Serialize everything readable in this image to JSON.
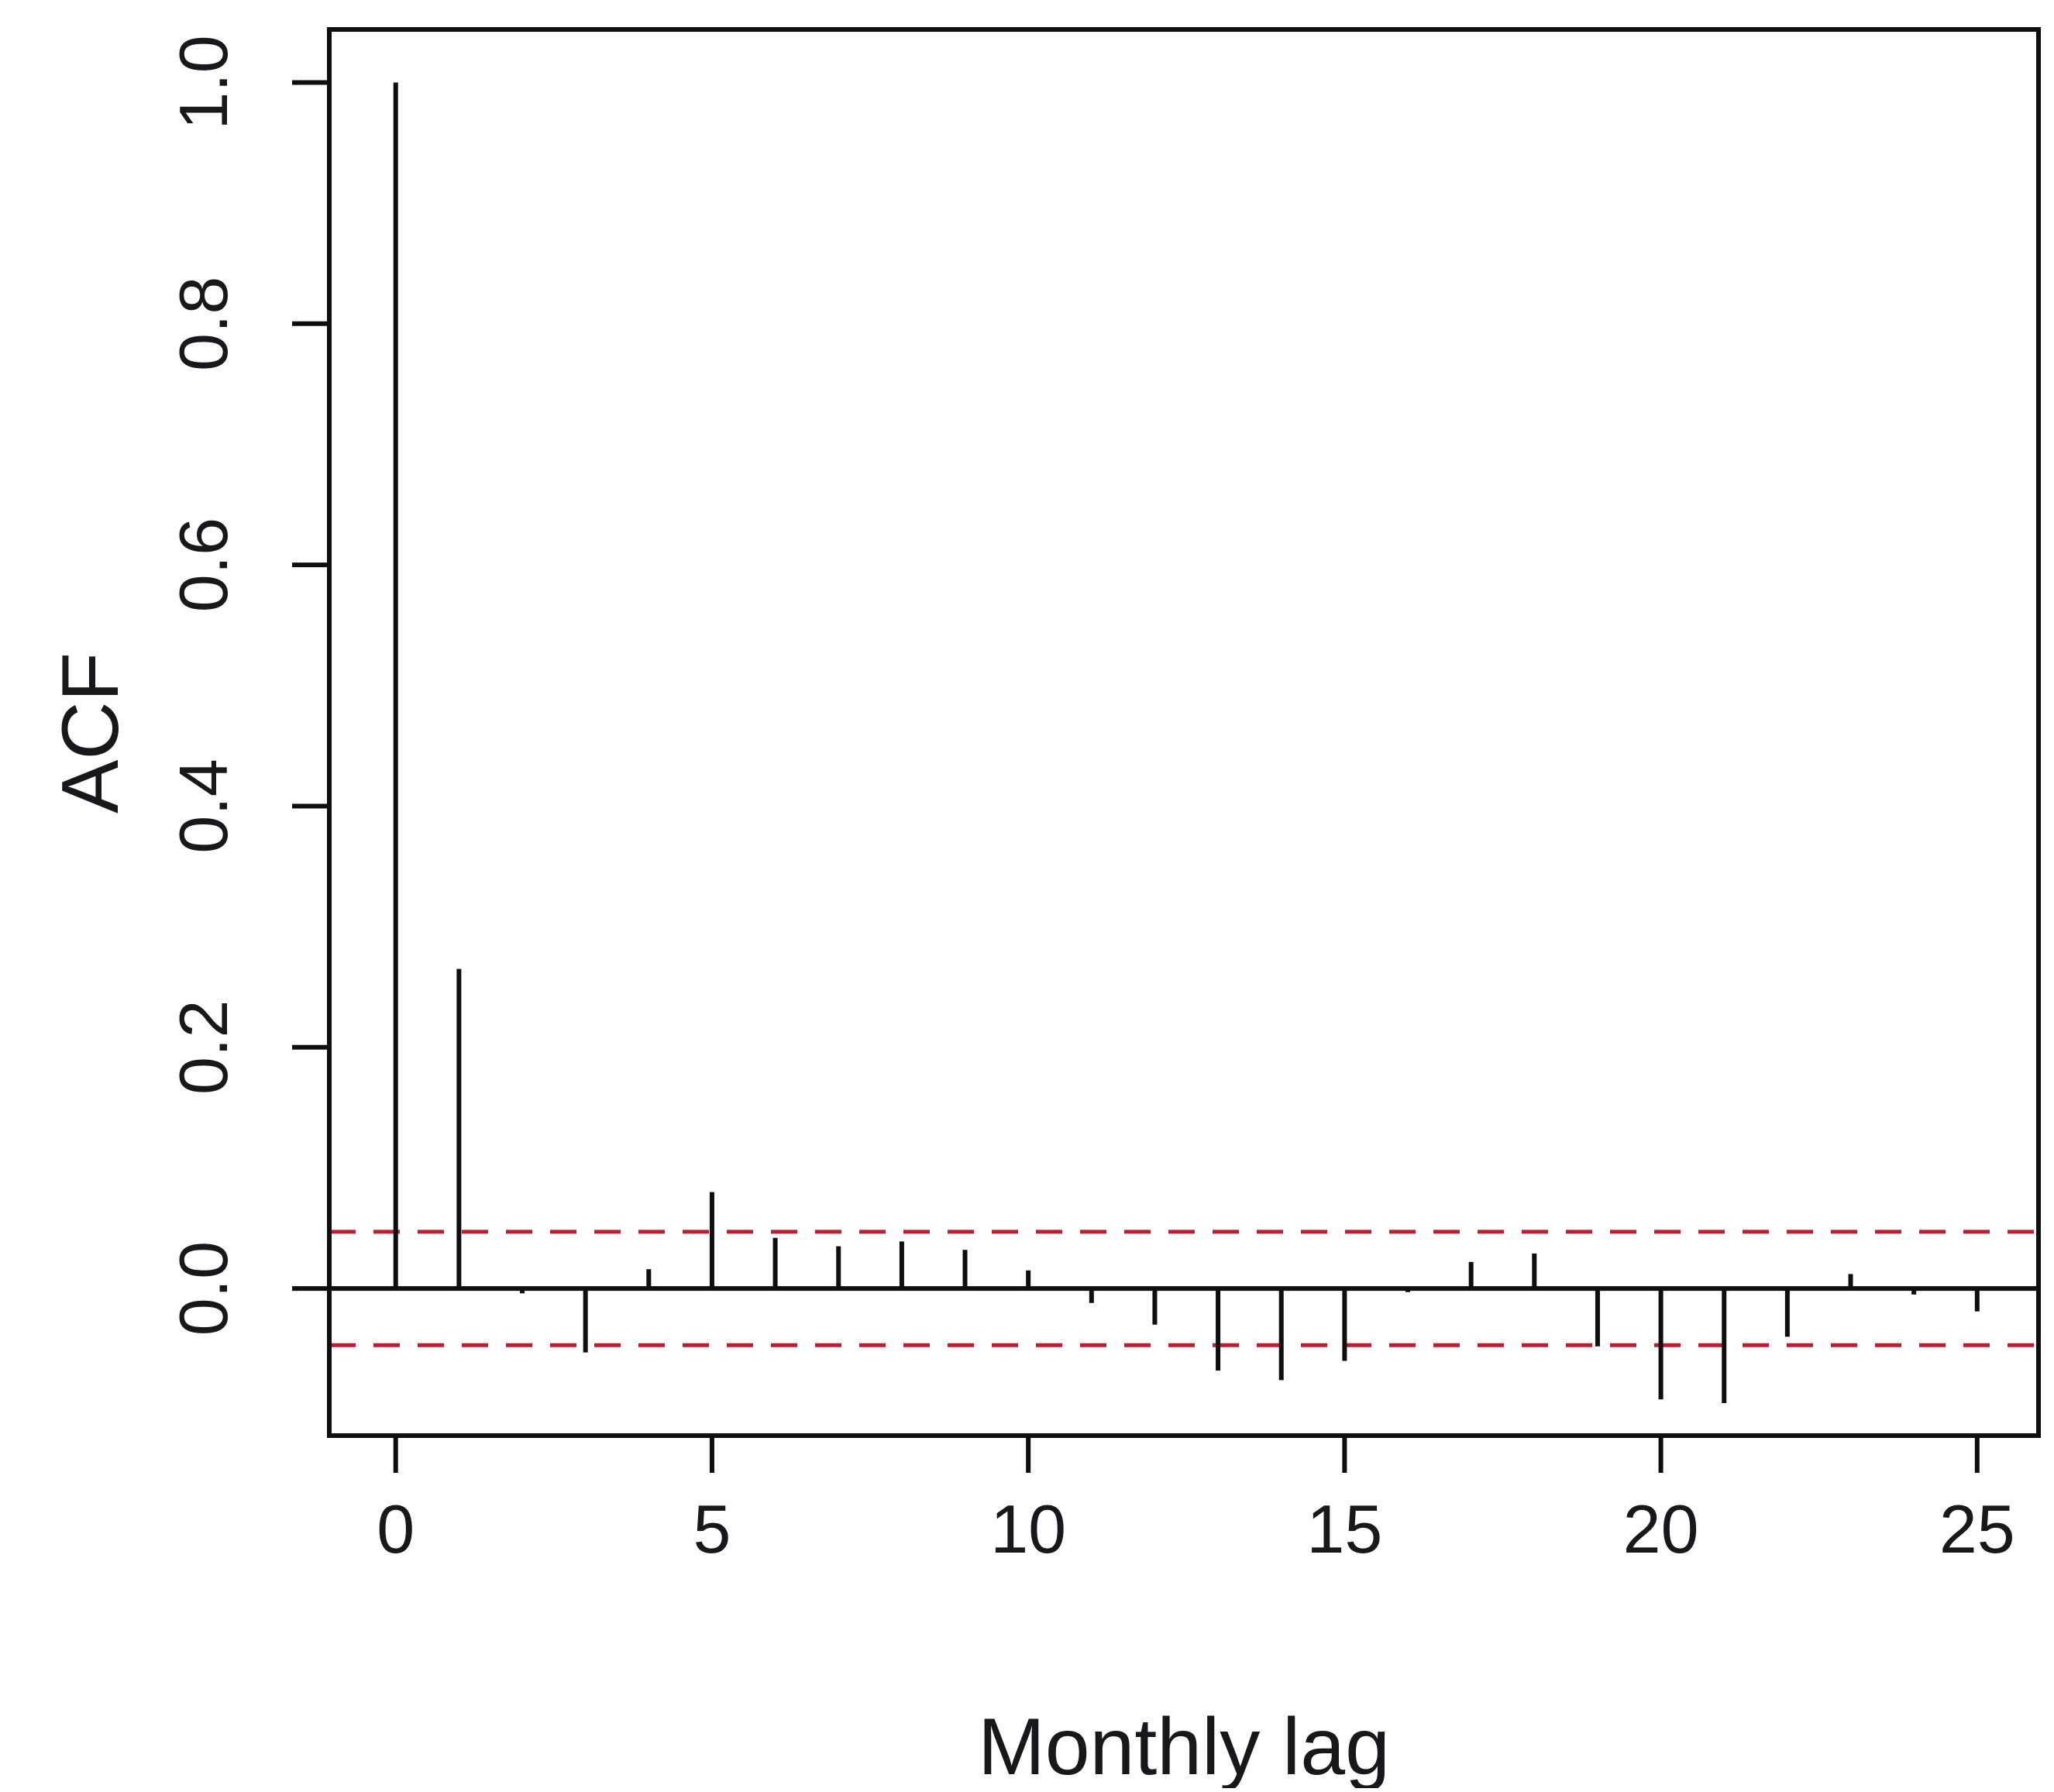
{
  "chart_data": {
    "type": "bar",
    "subtype": "acf-spike-plot",
    "title": "",
    "xlabel": "Monthly lag",
    "ylabel": "ACF",
    "x": [
      0,
      1,
      2,
      3,
      4,
      5,
      6,
      7,
      8,
      9,
      10,
      11,
      12,
      13,
      14,
      15,
      16,
      17,
      18,
      19,
      20,
      21,
      22,
      23,
      24,
      25
    ],
    "values": [
      1.0,
      0.265,
      -0.004,
      -0.053,
      0.016,
      0.08,
      0.042,
      0.035,
      0.039,
      0.032,
      0.015,
      -0.012,
      -0.03,
      -0.068,
      -0.076,
      -0.06,
      -0.003,
      0.022,
      0.029,
      -0.048,
      -0.092,
      -0.095,
      -0.04,
      0.012,
      -0.005,
      -0.019
    ],
    "confidence_upper": 0.047,
    "confidence_lower": -0.047,
    "zero_line": 0.0,
    "x_ticks": [
      0,
      5,
      10,
      15,
      20,
      25
    ],
    "x_tick_labels": [
      "0",
      "5",
      "10",
      "15",
      "20",
      "25"
    ],
    "y_ticks": [
      0.0,
      0.2,
      0.4,
      0.6,
      0.8,
      1.0
    ],
    "y_tick_labels": [
      "0.0",
      "0.2",
      "0.4",
      "0.6",
      "0.8",
      "1.0"
    ],
    "xlim": [
      -1.05,
      25.97
    ],
    "ylim": [
      -0.122,
      1.044
    ],
    "grid": "off",
    "legend": "none",
    "colors": {
      "spike": "#0e0e10",
      "border": "#0e0e10",
      "confidence_line": "#bb1e32",
      "background": "#ffffff"
    }
  }
}
